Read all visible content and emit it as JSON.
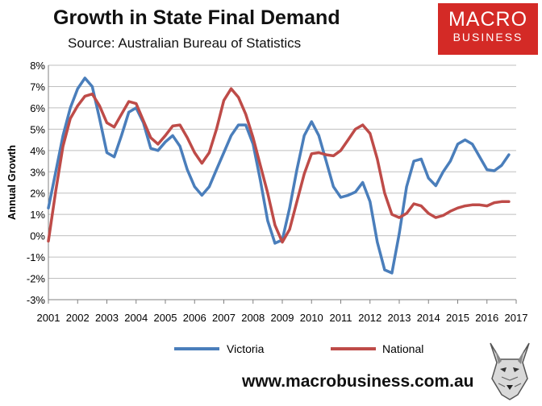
{
  "header": {
    "title": "Growth in State Final Demand",
    "subtitle": "Source: Australian Bureau of Statistics"
  },
  "logo": {
    "line1": "MACRO",
    "line2": "BUSINESS"
  },
  "footer": {
    "url": "www.macrobusiness.com.au",
    "mascot_icon": "wolf-icon"
  },
  "chart_data": {
    "type": "line",
    "ylabel": "Annual Growth",
    "ylim": [
      -3,
      8
    ],
    "y_ticks": [
      "-3%",
      "-2%",
      "-1%",
      "0%",
      "1%",
      "2%",
      "3%",
      "4%",
      "5%",
      "6%",
      "7%",
      "8%"
    ],
    "x_ticks": [
      "2001",
      "2002",
      "2003",
      "2004",
      "2005",
      "2006",
      "2007",
      "2008",
      "2009",
      "2010",
      "2011",
      "2012",
      "2013",
      "2014",
      "2015",
      "2016",
      "2017"
    ],
    "grid": true,
    "legend": "bottom",
    "series": [
      {
        "name": "Victoria",
        "color": "#4a7ebb",
        "x": [
          2001.0,
          2001.25,
          2001.5,
          2001.75,
          2002.0,
          2002.25,
          2002.5,
          2002.75,
          2003.0,
          2003.25,
          2003.5,
          2003.75,
          2004.0,
          2004.25,
          2004.5,
          2004.75,
          2005.0,
          2005.25,
          2005.5,
          2005.75,
          2006.0,
          2006.25,
          2006.5,
          2006.75,
          2007.0,
          2007.25,
          2007.5,
          2007.75,
          2008.0,
          2008.25,
          2008.5,
          2008.75,
          2009.0,
          2009.25,
          2009.5,
          2009.75,
          2010.0,
          2010.25,
          2010.5,
          2010.75,
          2011.0,
          2011.25,
          2011.5,
          2011.75,
          2012.0,
          2012.25,
          2012.5,
          2012.75,
          2013.0,
          2013.25,
          2013.5,
          2013.75,
          2014.0,
          2014.25,
          2014.5,
          2014.75,
          2015.0,
          2015.25,
          2015.5,
          2015.75,
          2016.0,
          2016.25,
          2016.5,
          2016.75,
          2017.0
        ],
        "values": [
          1.3,
          3.0,
          4.7,
          6.0,
          6.9,
          7.4,
          7.0,
          5.5,
          3.9,
          3.7,
          4.7,
          5.8,
          6.0,
          5.3,
          4.1,
          4.0,
          4.4,
          4.7,
          4.2,
          3.1,
          2.3,
          1.9,
          2.3,
          3.1,
          3.9,
          4.7,
          5.2,
          5.2,
          4.3,
          2.6,
          0.7,
          -0.35,
          -0.2,
          1.3,
          3.1,
          4.7,
          5.35,
          4.7,
          3.5,
          2.3,
          1.8,
          1.9,
          2.05,
          2.5,
          1.6,
          -0.3,
          -1.6,
          -1.75,
          0.1,
          2.3,
          3.5,
          3.6,
          2.7,
          2.35,
          3.0,
          3.5,
          4.3,
          4.5,
          4.3,
          3.7,
          3.1,
          3.05,
          3.3,
          3.8,
          null
        ]
      },
      {
        "name": "National",
        "color": "#be4b48",
        "x": [
          2001.0,
          2001.25,
          2001.5,
          2001.75,
          2002.0,
          2002.25,
          2002.5,
          2002.75,
          2003.0,
          2003.25,
          2003.5,
          2003.75,
          2004.0,
          2004.25,
          2004.5,
          2004.75,
          2005.0,
          2005.25,
          2005.5,
          2005.75,
          2006.0,
          2006.25,
          2006.5,
          2006.75,
          2007.0,
          2007.25,
          2007.5,
          2007.75,
          2008.0,
          2008.25,
          2008.5,
          2008.75,
          2009.0,
          2009.25,
          2009.5,
          2009.75,
          2010.0,
          2010.25,
          2010.5,
          2010.75,
          2011.0,
          2011.25,
          2011.5,
          2011.75,
          2012.0,
          2012.25,
          2012.5,
          2012.75,
          2013.0,
          2013.25,
          2013.5,
          2013.75,
          2014.0,
          2014.25,
          2014.5,
          2014.75,
          2015.0,
          2015.25,
          2015.5,
          2015.75,
          2016.0,
          2016.25,
          2016.5,
          2016.75,
          2017.0
        ],
        "values": [
          -0.25,
          2.1,
          4.2,
          5.5,
          6.1,
          6.55,
          6.65,
          6.1,
          5.3,
          5.1,
          5.7,
          6.3,
          6.2,
          5.4,
          4.6,
          4.3,
          4.7,
          5.15,
          5.2,
          4.6,
          3.9,
          3.4,
          3.9,
          5.0,
          6.35,
          6.9,
          6.5,
          5.7,
          4.6,
          3.3,
          2.0,
          0.5,
          -0.3,
          0.3,
          1.6,
          2.9,
          3.85,
          3.9,
          3.8,
          3.75,
          4.0,
          4.5,
          5.0,
          5.2,
          4.8,
          3.6,
          2.0,
          1.0,
          0.85,
          1.05,
          1.5,
          1.4,
          1.05,
          0.85,
          0.95,
          1.15,
          1.3,
          1.4,
          1.45,
          1.45,
          1.4,
          1.55,
          1.6,
          1.6,
          null
        ]
      }
    ]
  }
}
